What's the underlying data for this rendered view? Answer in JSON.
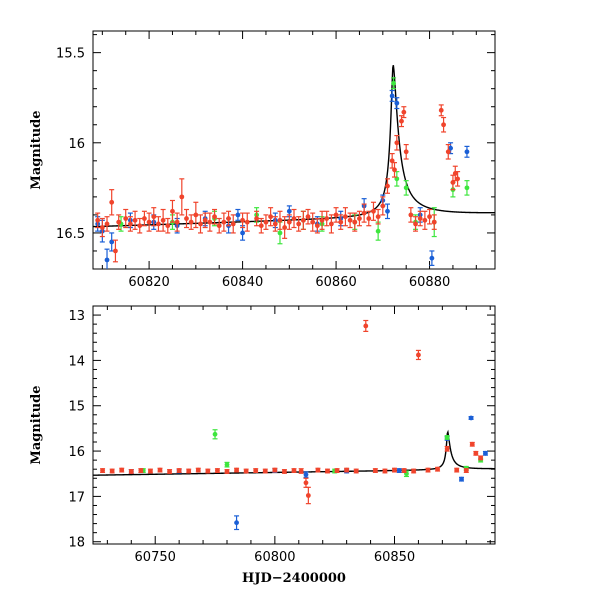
{
  "colors": {
    "red": "#f0442c",
    "blue": "#1a5fd6",
    "green": "#3ee63e",
    "model": "#000000"
  },
  "chart_data": [
    {
      "type": "scatter",
      "title": "",
      "xlabel": "",
      "ylabel": "Magnitude",
      "xlim": [
        60808,
        60894
      ],
      "ylim": [
        16.7,
        15.38
      ],
      "y_inverted": true,
      "xticks": [
        60820,
        60840,
        60860,
        60880
      ],
      "yticks": [
        15.5,
        16,
        16.5
      ],
      "series": [
        {
          "color": "red",
          "points": [
            [
              60809,
              16.43,
              0.04
            ],
            [
              60810,
              16.47,
              0.05
            ],
            [
              60811,
              16.45,
              0.04
            ],
            [
              60812,
              16.33,
              0.07
            ],
            [
              60812.8,
              16.6,
              0.06
            ],
            [
              60813.5,
              16.44,
              0.04
            ],
            [
              60815,
              16.42,
              0.05
            ],
            [
              60816,
              16.45,
              0.04
            ],
            [
              60817,
              16.43,
              0.05
            ],
            [
              60818,
              16.46,
              0.04
            ],
            [
              60819,
              16.42,
              0.04
            ],
            [
              60820,
              16.44,
              0.05
            ],
            [
              60821,
              16.41,
              0.05
            ],
            [
              60822,
              16.45,
              0.04
            ],
            [
              60823,
              16.43,
              0.06
            ],
            [
              60824,
              16.46,
              0.04
            ],
            [
              60825,
              16.38,
              0.06
            ],
            [
              60826,
              16.44,
              0.05
            ],
            [
              60827,
              16.3,
              0.1
            ],
            [
              60828,
              16.42,
              0.05
            ],
            [
              60829,
              16.44,
              0.04
            ],
            [
              60830,
              16.4,
              0.07
            ],
            [
              60831,
              16.45,
              0.05
            ],
            [
              60832,
              16.43,
              0.04
            ],
            [
              60833,
              16.44,
              0.05
            ],
            [
              60834,
              16.41,
              0.04
            ],
            [
              60835,
              16.46,
              0.04
            ],
            [
              60836,
              16.44,
              0.05
            ],
            [
              60837,
              16.42,
              0.04
            ],
            [
              60838,
              16.45,
              0.05
            ],
            [
              60840,
              16.43,
              0.04
            ],
            [
              60841,
              16.44,
              0.05
            ],
            [
              60843,
              16.42,
              0.04
            ],
            [
              60844,
              16.46,
              0.04
            ],
            [
              60845,
              16.44,
              0.04
            ],
            [
              60846,
              16.41,
              0.05
            ],
            [
              60847,
              16.45,
              0.04
            ],
            [
              60848,
              16.43,
              0.05
            ],
            [
              60849,
              16.47,
              0.06
            ],
            [
              60850,
              16.44,
              0.04
            ],
            [
              60851,
              16.42,
              0.05
            ],
            [
              60852,
              16.45,
              0.04
            ],
            [
              60853,
              16.43,
              0.05
            ],
            [
              60854,
              16.41,
              0.04
            ],
            [
              60855,
              16.44,
              0.05
            ],
            [
              60856,
              16.46,
              0.04
            ],
            [
              60857,
              16.43,
              0.05
            ],
            [
              60858,
              16.42,
              0.04
            ],
            [
              60859,
              16.45,
              0.05
            ],
            [
              60860,
              16.4,
              0.04
            ],
            [
              60861,
              16.44,
              0.04
            ],
            [
              60862,
              16.41,
              0.05
            ],
            [
              60863,
              16.43,
              0.04
            ],
            [
              60864,
              16.44,
              0.05
            ],
            [
              60865,
              16.42,
              0.04
            ],
            [
              60866,
              16.39,
              0.05
            ],
            [
              60867,
              16.42,
              0.04
            ],
            [
              60868,
              16.38,
              0.05
            ],
            [
              60869,
              16.41,
              0.04
            ],
            [
              60870,
              16.35,
              0.05
            ],
            [
              60871,
              16.24,
              0.04
            ],
            [
              60872,
              16.1,
              0.04
            ],
            [
              60872.5,
              16.15,
              0.04
            ],
            [
              60873,
              16.0,
              0.04
            ],
            [
              60874,
              15.88,
              0.03
            ],
            [
              60874.5,
              15.83,
              0.03
            ],
            [
              60875,
              16.05,
              0.04
            ],
            [
              60876,
              16.4,
              0.04
            ],
            [
              60877,
              16.45,
              0.04
            ],
            [
              60878,
              16.42,
              0.04
            ],
            [
              60879,
              16.43,
              0.05
            ],
            [
              60880,
              16.41,
              0.04
            ],
            [
              60881,
              16.44,
              0.04
            ],
            [
              60882.5,
              15.82,
              0.03
            ],
            [
              60883,
              15.9,
              0.04
            ],
            [
              60884,
              16.05,
              0.04
            ],
            [
              60885,
              16.22,
              0.04
            ],
            [
              60885.5,
              16.17,
              0.04
            ],
            [
              60886,
              16.2,
              0.04
            ]
          ]
        },
        {
          "color": "blue",
          "points": [
            [
              60809,
              16.45,
              0.04
            ],
            [
              60810,
              16.49,
              0.06
            ],
            [
              60811,
              16.65,
              0.06
            ],
            [
              60812,
              16.55,
              0.05
            ],
            [
              60816,
              16.43,
              0.04
            ],
            [
              60821,
              16.44,
              0.04
            ],
            [
              60826,
              16.46,
              0.04
            ],
            [
              60832,
              16.42,
              0.04
            ],
            [
              60837,
              16.46,
              0.04
            ],
            [
              60839,
              16.4,
              0.03
            ],
            [
              60840,
              16.5,
              0.04
            ],
            [
              60847,
              16.43,
              0.04
            ],
            [
              60850,
              16.38,
              0.03
            ],
            [
              60856,
              16.45,
              0.04
            ],
            [
              60861,
              16.42,
              0.04
            ],
            [
              60866,
              16.35,
              0.04
            ],
            [
              60870,
              16.32,
              0.03
            ],
            [
              60871,
              16.38,
              0.04
            ],
            [
              60872,
              15.74,
              0.03
            ],
            [
              60873,
              15.78,
              0.03
            ],
            [
              60878,
              16.4,
              0.04
            ],
            [
              60880.5,
              16.64,
              0.04
            ],
            [
              60884.5,
              16.03,
              0.03
            ],
            [
              60888,
              16.05,
              0.03
            ]
          ]
        },
        {
          "color": "green",
          "points": [
            [
              60814,
              16.45,
              0.04
            ],
            [
              60825,
              16.44,
              0.04
            ],
            [
              60834,
              16.42,
              0.04
            ],
            [
              60843,
              16.4,
              0.04
            ],
            [
              60848,
              16.5,
              0.06
            ],
            [
              60853,
              16.43,
              0.05
            ],
            [
              60857,
              16.45,
              0.04
            ],
            [
              60864,
              16.44,
              0.04
            ],
            [
              60869,
              16.49,
              0.05
            ],
            [
              60872.3,
              15.67,
              0.03
            ],
            [
              60873,
              16.2,
              0.04
            ],
            [
              60875,
              16.25,
              0.04
            ],
            [
              60877,
              16.44,
              0.04
            ],
            [
              60881,
              16.44,
              0.08
            ],
            [
              60885,
              16.26,
              0.04
            ],
            [
              60888,
              16.25,
              0.04
            ]
          ]
        }
      ]
    },
    {
      "type": "scatter",
      "title": "",
      "xlabel": "HJD−2400000",
      "ylabel": "Magnitude",
      "xlim": [
        60724,
        60892
      ],
      "ylim": [
        18.05,
        12.8
      ],
      "y_inverted": true,
      "xticks": [
        60750,
        60800,
        60850
      ],
      "yticks": [
        13,
        14,
        15,
        16,
        17,
        18
      ],
      "series": [
        {
          "color": "red",
          "points": [
            [
              60728,
              16.43,
              0.04
            ],
            [
              60732,
              16.44,
              0.04
            ],
            [
              60736,
              16.42,
              0.04
            ],
            [
              60740,
              16.45,
              0.04
            ],
            [
              60744,
              16.43,
              0.04
            ],
            [
              60748,
              16.44,
              0.04
            ],
            [
              60752,
              16.42,
              0.04
            ],
            [
              60756,
              16.45,
              0.04
            ],
            [
              60760,
              16.43,
              0.04
            ],
            [
              60764,
              16.44,
              0.04
            ],
            [
              60768,
              16.42,
              0.04
            ],
            [
              60772,
              16.44,
              0.04
            ],
            [
              60776,
              16.43,
              0.04
            ],
            [
              60780,
              16.45,
              0.04
            ],
            [
              60784,
              16.42,
              0.04
            ],
            [
              60788,
              16.44,
              0.04
            ],
            [
              60792,
              16.43,
              0.04
            ],
            [
              60796,
              16.44,
              0.04
            ],
            [
              60800,
              16.42,
              0.04
            ],
            [
              60804,
              16.45,
              0.04
            ],
            [
              60808,
              16.43,
              0.04
            ],
            [
              60811,
              16.44,
              0.05
            ],
            [
              60813,
              16.7,
              0.1
            ],
            [
              60814,
              16.98,
              0.18
            ],
            [
              60818,
              16.42,
              0.04
            ],
            [
              60822,
              16.44,
              0.04
            ],
            [
              60826,
              16.43,
              0.04
            ],
            [
              60830,
              16.42,
              0.04
            ],
            [
              60834,
              16.44,
              0.04
            ],
            [
              60838,
              13.24,
              0.12
            ],
            [
              60842,
              16.43,
              0.04
            ],
            [
              60846,
              16.44,
              0.04
            ],
            [
              60850,
              16.42,
              0.04
            ],
            [
              60854,
              16.43,
              0.04
            ],
            [
              60858,
              16.44,
              0.04
            ],
            [
              60860,
              13.88,
              0.1
            ],
            [
              60864,
              16.42,
              0.04
            ],
            [
              60868,
              16.4,
              0.04
            ],
            [
              60872,
              15.95,
              0.05
            ],
            [
              60876,
              16.42,
              0.04
            ],
            [
              60880,
              16.43,
              0.04
            ],
            [
              60882.5,
              15.85,
              0.04
            ],
            [
              60884,
              16.05,
              0.04
            ],
            [
              60886,
              16.15,
              0.04
            ]
          ]
        },
        {
          "color": "blue",
          "points": [
            [
              60740,
              16.45,
              0.04
            ],
            [
              60760,
              16.44,
              0.04
            ],
            [
              60784,
              17.58,
              0.15
            ],
            [
              60800,
              16.43,
              0.04
            ],
            [
              60813,
              16.52,
              0.06
            ],
            [
              60830,
              16.44,
              0.04
            ],
            [
              60852,
              16.43,
              0.04
            ],
            [
              60872,
              15.72,
              0.04
            ],
            [
              60878,
              16.62,
              0.04
            ],
            [
              60882,
              15.27,
              0.03
            ],
            [
              60888,
              16.05,
              0.04
            ]
          ]
        },
        {
          "color": "green",
          "points": [
            [
              60745,
              16.43,
              0.04
            ],
            [
              60775,
              15.63,
              0.1
            ],
            [
              60780,
              16.3,
              0.05
            ],
            [
              60825,
              16.44,
              0.04
            ],
            [
              60855,
              16.5,
              0.06
            ],
            [
              60872,
              15.7,
              0.04
            ],
            [
              60880,
              16.38,
              0.04
            ],
            [
              60886,
              16.2,
              0.04
            ]
          ]
        }
      ]
    }
  ]
}
